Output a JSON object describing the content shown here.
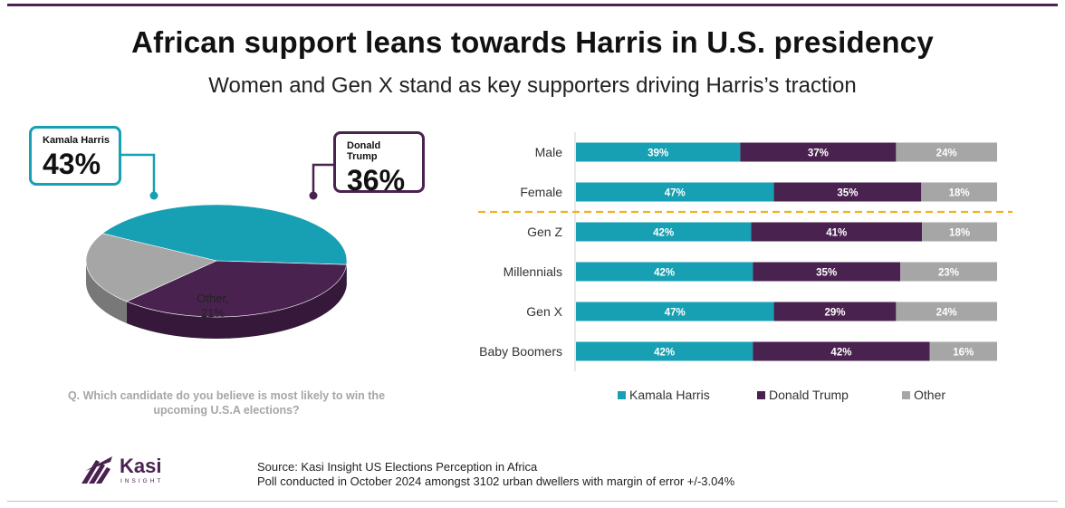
{
  "header": {
    "title": "African support leans towards Harris in U.S. presidency",
    "subtitle": "Women and Gen X stand as key supporters driving Harris’s traction"
  },
  "callouts": {
    "harris": {
      "name": "Kamala Harris",
      "value": "43%"
    },
    "trump": {
      "name": "Donald Trump",
      "value": "36%"
    }
  },
  "question": "Q. Which candidate do you believe is most likely to win the upcoming U.S.A elections?",
  "colors": {
    "harris": "#17a0b3",
    "trump": "#4a2250",
    "other": "#a6a6a6",
    "divider": "#f2b21a"
  },
  "chart_data": [
    {
      "type": "pie",
      "style": "3d",
      "slices": [
        {
          "label": "Kamala Harris",
          "value": 43
        },
        {
          "label": "Donald Trump",
          "value": 36
        },
        {
          "label": "Other",
          "value": 21
        }
      ],
      "data_labels": {
        "other_line1": "Other,",
        "other_line2": "21%"
      }
    },
    {
      "type": "bar",
      "orientation": "horizontal",
      "stacked": true,
      "categories": [
        "Male",
        "Female",
        "Gen Z",
        "Millennials",
        "Gen X",
        "Baby Boomers"
      ],
      "series": [
        {
          "name": "Kamala Harris",
          "values": [
            39,
            47,
            42,
            42,
            47,
            42
          ]
        },
        {
          "name": "Donald Trump",
          "values": [
            37,
            35,
            41,
            35,
            29,
            42
          ]
        },
        {
          "name": "Other",
          "values": [
            24,
            18,
            18,
            23,
            24,
            16
          ]
        }
      ],
      "legend": [
        "Kamala Harris",
        "Donald Trump",
        "Other"
      ],
      "legend_position": "bottom"
    }
  ],
  "footer": {
    "source": "Source: Kasi Insight US Elections Perception in Africa",
    "note": "Poll conducted in October 2024 amongst 3102 urban dwellers with margin of error +/-3.04%",
    "brand": "Kasi",
    "brand_sub": "INSIGHT"
  }
}
